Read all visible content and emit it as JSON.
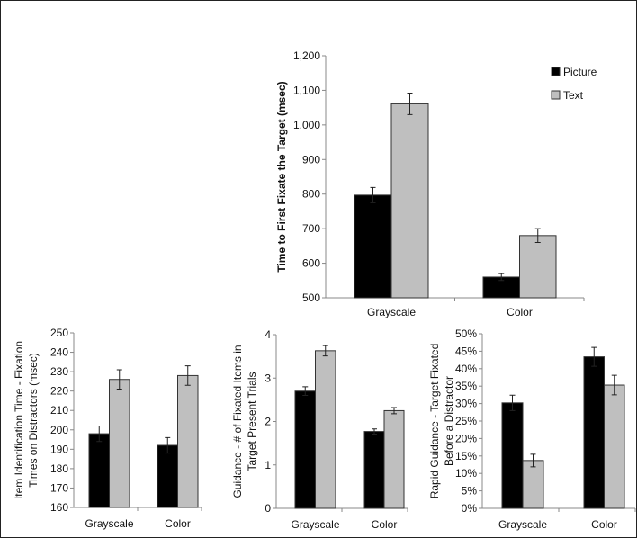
{
  "chart_data": [
    {
      "type": "bar",
      "ylabel": [
        "Time to First Fixate the Target (msec)"
      ],
      "categories": [
        "Grayscale",
        "Color"
      ],
      "yticks": [
        "500",
        "600",
        "700",
        "800",
        "900",
        "1,000",
        "1,100",
        "1,200"
      ],
      "ylim": [
        500,
        1200
      ],
      "series": [
        {
          "name": "Picture",
          "color": "#000000",
          "values": [
            797,
            560
          ],
          "errors": [
            22,
            10
          ]
        },
        {
          "name": "Text",
          "color": "#bfbfbf",
          "values": [
            1061,
            680
          ],
          "errors": [
            31,
            20
          ]
        }
      ],
      "legend": "top-right",
      "grid": false
    },
    {
      "type": "bar",
      "ylabel": [
        "Item Identification Time - Fixation",
        "Times on Distractors (msec)"
      ],
      "categories": [
        "Grayscale",
        "Color"
      ],
      "yticks": [
        "160",
        "170",
        "180",
        "190",
        "200",
        "210",
        "220",
        "230",
        "240",
        "250"
      ],
      "ylim": [
        160,
        250
      ],
      "series": [
        {
          "color": "#000000",
          "values": [
            198,
            192
          ],
          "errors": [
            4,
            4
          ]
        },
        {
          "color": "#bfbfbf",
          "values": [
            226,
            228
          ],
          "errors": [
            5,
            5
          ]
        }
      ],
      "grid": false
    },
    {
      "type": "bar",
      "ylabel": [
        "Guidance - # of  Fixated  Items in",
        "Target Present  Trials"
      ],
      "categories": [
        "Grayscale",
        "Color"
      ],
      "yticks": [
        "0",
        "1",
        "2",
        "3",
        "4"
      ],
      "ylim": [
        0,
        4
      ],
      "series": [
        {
          "color": "#000000",
          "values": [
            2.7,
            1.77
          ],
          "errors": [
            0.1,
            0.06
          ]
        },
        {
          "color": "#bfbfbf",
          "values": [
            3.63,
            2.25
          ],
          "errors": [
            0.12,
            0.07
          ]
        }
      ],
      "grid": false
    },
    {
      "type": "bar",
      "ylabel": [
        "Rapid Guidance - Target Fixated",
        "Before a Distractor"
      ],
      "categories": [
        "Grayscale",
        "Color"
      ],
      "yticks": [
        "0%",
        "5%",
        "10%",
        "15%",
        "20%",
        "25%",
        "30%",
        "35%",
        "40%",
        "45%",
        "50%"
      ],
      "ylim": [
        0,
        50
      ],
      "series": [
        {
          "color": "#000000",
          "values": [
            30.2,
            43.4
          ],
          "errors": [
            2.2,
            2.7
          ]
        },
        {
          "color": "#bfbfbf",
          "values": [
            13.7,
            35.3
          ],
          "errors": [
            1.8,
            2.8
          ]
        }
      ],
      "grid": false
    }
  ]
}
